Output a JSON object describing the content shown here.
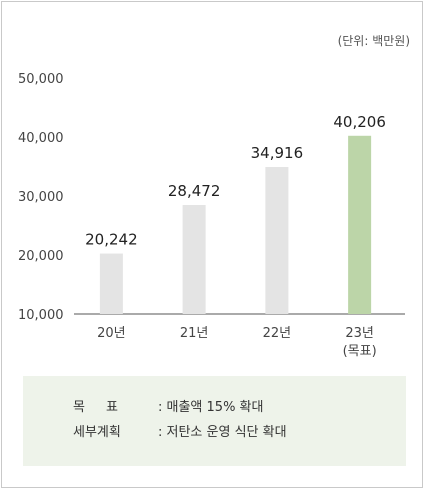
{
  "unit_label": "(단위: 백만원)",
  "colors": {
    "bar": "#e4e4e4",
    "highlight": "#bcd5a8",
    "axis": "#555555",
    "box": "#eef3ea"
  },
  "chart_data": {
    "type": "bar",
    "categories": [
      "20년",
      "21년",
      "22년",
      "23년"
    ],
    "category_sublabels": [
      "",
      "",
      "",
      "(목표)"
    ],
    "values": [
      20242,
      28472,
      34916,
      40206
    ],
    "value_labels": [
      "20,242",
      "28,472",
      "34,916",
      "40,206"
    ],
    "highlight_index": 3,
    "ylim": [
      10000,
      50000
    ],
    "yticks": [
      10000,
      20000,
      30000,
      40000,
      50000
    ],
    "ytick_labels": [
      "10,000",
      "20,000",
      "30,000",
      "40,000",
      "50,000"
    ],
    "title": "",
    "xlabel": "",
    "ylabel": "",
    "grid": false
  },
  "info": {
    "rows": [
      {
        "label": "목표",
        "text": ": 매출액 15% 확대"
      },
      {
        "label": "세부계획",
        "text": ": 저탄소 운영 식단 확대"
      }
    ]
  }
}
